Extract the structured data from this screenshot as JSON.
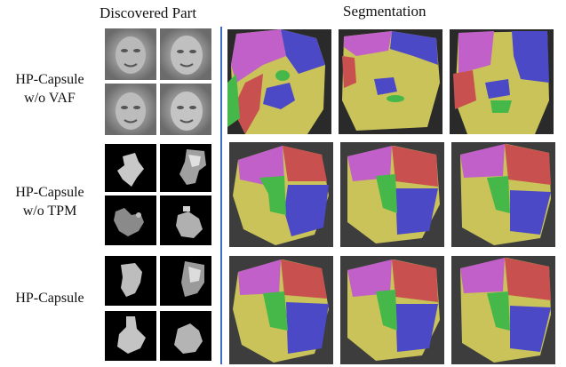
{
  "headers": {
    "discovered_part": "Discovered Part",
    "segmentation": "Segmentation"
  },
  "rows": [
    {
      "label_line1": "HP-Capsule",
      "label_line2": "w/o VAF"
    },
    {
      "label_line1": "HP-Capsule",
      "label_line2": "w/o TPM"
    },
    {
      "label_line1": "HP-Capsule",
      "label_line2": ""
    }
  ],
  "colors": {
    "divider": "#3b6fc4",
    "seg_magenta": "#c060c8",
    "seg_red": "#c8504f",
    "seg_yellow": "#c9c35a",
    "seg_blue": "#4c49c6",
    "seg_green": "#46b84a"
  }
}
